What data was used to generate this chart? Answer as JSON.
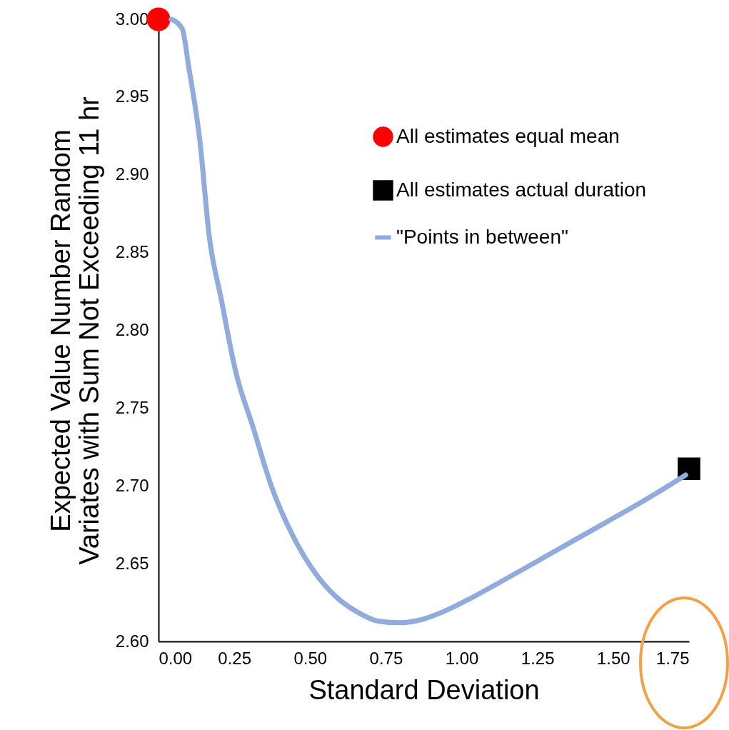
{
  "chart_data": {
    "type": "line",
    "xlabel": "Standard Deviation",
    "ylabel": "Expected Value Number Random\nVariates with Sum Not Exceeding 11 hr",
    "xlim": [
      0,
      1.75
    ],
    "xticks": [
      {
        "value": 0,
        "label": "0.00"
      },
      {
        "value": 0.25,
        "label": "0.25"
      },
      {
        "value": 0.5,
        "label": "0.50"
      },
      {
        "value": 0.75,
        "label": "0.75"
      },
      {
        "value": 1,
        "label": "1.00"
      },
      {
        "value": 1.25,
        "label": "1.25"
      },
      {
        "value": 1.5,
        "label": "1.50"
      },
      {
        "value": 1.75,
        "label": "1.75"
      }
    ],
    "ylim": [
      2.6,
      3.0
    ],
    "yticks": [
      {
        "value": 2.6,
        "label": "2.60"
      },
      {
        "value": 2.65,
        "label": "2.65"
      },
      {
        "value": 2.7,
        "label": "2.70"
      },
      {
        "value": 2.75,
        "label": "2.75"
      },
      {
        "value": 2.8,
        "label": "2.80"
      },
      {
        "value": 2.85,
        "label": "2.85"
      },
      {
        "value": 2.9,
        "label": "2.90"
      },
      {
        "value": 2.95,
        "label": "2.95"
      },
      {
        "value": 3.0,
        "label": "3.00"
      }
    ],
    "grid": false,
    "legend": "top right",
    "line_style": "solid",
    "series": [
      {
        "name": "All estimates equal mean",
        "type": "scatter",
        "marker": "circle",
        "color": "#ff0000",
        "x": [
          0
        ],
        "values": [
          3.0
        ]
      },
      {
        "name": "All estimates actual duration",
        "type": "scatter",
        "marker": "square",
        "color": "#000000",
        "x": [
          1.75
        ],
        "values": [
          2.711
        ]
      },
      {
        "name": "\"Points in between\"",
        "marker": "none",
        "color": "#92abdd",
        "x": [
          0.042,
          0.078,
          0.1,
          0.137,
          0.167,
          0.207,
          0.254,
          0.313,
          0.372,
          0.443,
          0.513,
          0.584,
          0.655,
          0.726,
          0.796,
          0.867,
          0.938,
          1.032,
          1.126,
          1.244,
          1.362,
          1.48,
          1.597,
          1.715,
          1.739
        ],
        "values": [
          3.0,
          2.994,
          2.969,
          2.921,
          2.861,
          2.82,
          2.774,
          2.737,
          2.7,
          2.668,
          2.645,
          2.629,
          2.619,
          2.613,
          2.612,
          2.614,
          2.619,
          2.628,
          2.638,
          2.651,
          2.664,
          2.677,
          2.69,
          2.704,
          2.707
        ]
      }
    ]
  }
}
